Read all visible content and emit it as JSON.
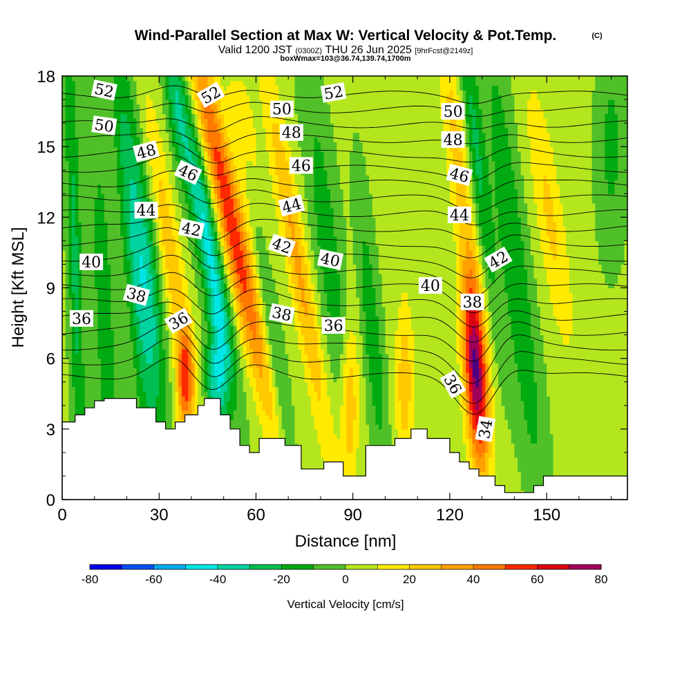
{
  "chart_data": {
    "type": "heatmap",
    "title": "Wind-Parallel Section at Max W: Vertical Velocity & Pot.Temp.",
    "title_mark": "(C)",
    "subtitle_parts": [
      "Valid 1200 JST",
      "(0300Z)",
      "THU 26 Jun 2025",
      "[9hrFcst@2149z]"
    ],
    "subtitle2": "boxWmax=103@36.74,139.74,1700m",
    "xlabel": "Distance [nm]",
    "ylabel": "Height [Kft MSL]",
    "xlim": [
      0,
      175
    ],
    "ylim": [
      0,
      18
    ],
    "x_ticks": [
      "0",
      "30",
      "60",
      "90",
      "120",
      "150"
    ],
    "x_tick_values": [
      0,
      30,
      60,
      90,
      120,
      150
    ],
    "y_ticks": [
      "0",
      "3",
      "6",
      "9",
      "12",
      "15",
      "18"
    ],
    "y_tick_values": [
      0,
      3,
      6,
      9,
      12,
      15,
      18
    ],
    "colorbar": {
      "label": "Vertical Velocity [cm/s]",
      "min": -80,
      "max": 80,
      "step": 10,
      "tick_labels": [
        "-80",
        "-60",
        "-40",
        "-20",
        "0",
        "20",
        "40",
        "60",
        "80"
      ],
      "colors": [
        "#0000e6",
        "#0a50f0",
        "#00aaf0",
        "#00e6e6",
        "#00d2a0",
        "#00be50",
        "#00aa10",
        "#50c028",
        "#b4e61e",
        "#ffea00",
        "#ffc800",
        "#ffa000",
        "#ff7800",
        "#ff2800",
        "#dc0014",
        "#a0005a",
        "#500082"
      ]
    },
    "terrain_kft": [
      [
        0,
        3.3
      ],
      [
        4,
        3.3
      ],
      [
        4,
        3.6
      ],
      [
        7,
        3.6
      ],
      [
        7,
        3.9
      ],
      [
        10,
        3.9
      ],
      [
        10,
        4.2
      ],
      [
        13,
        4.2
      ],
      [
        13,
        4.3
      ],
      [
        23,
        4.3
      ],
      [
        23,
        3.9
      ],
      [
        29,
        3.9
      ],
      [
        29,
        3.3
      ],
      [
        32,
        3.3
      ],
      [
        32,
        3.0
      ],
      [
        35,
        3.0
      ],
      [
        35,
        3.3
      ],
      [
        38,
        3.3
      ],
      [
        38,
        3.6
      ],
      [
        42,
        3.6
      ],
      [
        42,
        4.0
      ],
      [
        44,
        4.0
      ],
      [
        44,
        4.3
      ],
      [
        49,
        4.3
      ],
      [
        49,
        3.6
      ],
      [
        52,
        3.6
      ],
      [
        52,
        3.0
      ],
      [
        55,
        3.0
      ],
      [
        55,
        2.3
      ],
      [
        58,
        2.3
      ],
      [
        58,
        2.0
      ],
      [
        61,
        2.0
      ],
      [
        61,
        2.6
      ],
      [
        69,
        2.6
      ],
      [
        69,
        2.3
      ],
      [
        74,
        2.3
      ],
      [
        74,
        1.3
      ],
      [
        81,
        1.3
      ],
      [
        81,
        1.6
      ],
      [
        87,
        1.6
      ],
      [
        87,
        1.0
      ],
      [
        94,
        1.0
      ],
      [
        94,
        2.3
      ],
      [
        103,
        2.3
      ],
      [
        103,
        2.6
      ],
      [
        108,
        2.6
      ],
      [
        108,
        3.0
      ],
      [
        113,
        3.0
      ],
      [
        113,
        2.6
      ],
      [
        120,
        2.6
      ],
      [
        120,
        2.0
      ],
      [
        123,
        2.0
      ],
      [
        123,
        1.6
      ],
      [
        126,
        1.6
      ],
      [
        126,
        1.3
      ],
      [
        129,
        1.3
      ],
      [
        129,
        1.0
      ],
      [
        134,
        1.0
      ],
      [
        134,
        0.6
      ],
      [
        137,
        0.6
      ],
      [
        137,
        0.3
      ],
      [
        146,
        0.3
      ],
      [
        146,
        0.6
      ],
      [
        149,
        0.6
      ],
      [
        149,
        1.0
      ],
      [
        175,
        1.0
      ]
    ],
    "w_features": [
      {
        "x": 4,
        "z": 10,
        "sx": 1.5,
        "sz": 8,
        "tilt": -0.2,
        "w": -25
      },
      {
        "x": 13,
        "z": 8,
        "sx": 2.5,
        "sz": 6,
        "tilt": -0.3,
        "w": -18
      },
      {
        "x": 22,
        "z": 11,
        "sx": 2.5,
        "sz": 7,
        "tilt": -0.6,
        "w": -28
      },
      {
        "x": 27,
        "z": 9,
        "sx": 2.5,
        "sz": 4,
        "tilt": -0.6,
        "w": -30
      },
      {
        "x": 34,
        "z": 10,
        "sx": 2.5,
        "sz": 5,
        "tilt": -1.1,
        "w": 25
      },
      {
        "x": 38,
        "z": 5,
        "sx": 1.8,
        "sz": 1.5,
        "tilt": 0,
        "w": 45
      },
      {
        "x": 35,
        "z": 17,
        "sx": 2.0,
        "sz": 2.5,
        "tilt": -0.8,
        "w": -25
      },
      {
        "x": 45,
        "z": 11,
        "sx": 2.5,
        "sz": 4,
        "tilt": -1.2,
        "w": -45
      },
      {
        "x": 48,
        "z": 5,
        "sx": 2.5,
        "sz": 2,
        "tilt": 0,
        "w": -40
      },
      {
        "x": 52,
        "z": 12,
        "sx": 3.0,
        "sz": 6,
        "tilt": -1.5,
        "w": 55
      },
      {
        "x": 57,
        "z": 15,
        "sx": 2.5,
        "sz": 4,
        "tilt": -1.0,
        "w": 30
      },
      {
        "x": 61,
        "z": 11,
        "sx": 2.0,
        "sz": 7,
        "tilt": -1.0,
        "w": -25
      },
      {
        "x": 73,
        "z": 10,
        "sx": 2.5,
        "sz": 6,
        "tilt": -1.2,
        "w": 30
      },
      {
        "x": 82,
        "z": 11,
        "sx": 3.0,
        "sz": 5,
        "tilt": -0.8,
        "w": -18
      },
      {
        "x": 96,
        "z": 7,
        "sx": 2.0,
        "sz": 4,
        "tilt": -0.6,
        "w": -20
      },
      {
        "x": 89,
        "z": 4,
        "sx": 2.0,
        "sz": 2.5,
        "tilt": 0,
        "w": 30
      },
      {
        "x": 106,
        "z": 5,
        "sx": 2.0,
        "sz": 2.5,
        "tilt": 0,
        "w": 25
      },
      {
        "x": 122,
        "z": 15,
        "sx": 2.5,
        "sz": 4,
        "tilt": -0.8,
        "w": 22
      },
      {
        "x": 128,
        "z": 15,
        "sx": 2.0,
        "sz": 5,
        "tilt": -0.8,
        "w": -25
      },
      {
        "x": 128,
        "z": 5.5,
        "sx": 2.5,
        "sz": 3,
        "tilt": -0.4,
        "w": 80
      },
      {
        "x": 140,
        "z": 10,
        "sx": 3.0,
        "sz": 7,
        "tilt": -0.8,
        "w": -22
      },
      {
        "x": 151,
        "z": 12,
        "sx": 3.0,
        "sz": 4,
        "tilt": -1.0,
        "w": 20
      },
      {
        "x": 170,
        "z": 15,
        "sx": 3.0,
        "sz": 3,
        "tilt": 0,
        "w": -15
      }
    ],
    "theta_contours": {
      "levels_from": 34,
      "levels_to": 53,
      "base_level": 36,
      "base_height_kft": 6.5,
      "kft_per_degree": 0.63,
      "wave_terms": [
        {
          "x": 35,
          "sx": 7,
          "amp": 1.0,
          "decay": 12
        },
        {
          "x": 46,
          "sx": 6,
          "amp": -1.2,
          "decay": 10
        },
        {
          "x": 58,
          "sx": 8,
          "amp": 0.6,
          "decay": 10
        },
        {
          "x": 128,
          "sx": 6,
          "amp": -1.8,
          "decay": 6
        },
        {
          "x": 138,
          "sx": 6,
          "amp": 0.6,
          "decay": 8
        }
      ]
    },
    "contour_labels": [
      {
        "text": "52",
        "x": 13,
        "z": 17.4,
        "angle": 12
      },
      {
        "text": "50",
        "x": 13,
        "z": 15.9,
        "angle": 8
      },
      {
        "text": "48",
        "x": 26,
        "z": 14.8,
        "angle": -15
      },
      {
        "text": "46",
        "x": 39,
        "z": 13.9,
        "angle": 25
      },
      {
        "text": "44",
        "x": 26,
        "z": 12.3,
        "angle": 0
      },
      {
        "text": "42",
        "x": 40,
        "z": 11.5,
        "angle": 12
      },
      {
        "text": "40",
        "x": 9,
        "z": 10.1,
        "angle": 0
      },
      {
        "text": "38",
        "x": 23,
        "z": 8.7,
        "angle": 15
      },
      {
        "text": "36",
        "x": 6,
        "z": 7.7,
        "angle": 0
      },
      {
        "text": "36",
        "x": 36,
        "z": 7.6,
        "angle": -30
      },
      {
        "text": "52",
        "x": 46,
        "z": 17.2,
        "angle": -30
      },
      {
        "text": "50",
        "x": 68,
        "z": 16.6,
        "angle": 0
      },
      {
        "text": "48",
        "x": 71,
        "z": 15.6,
        "angle": 0
      },
      {
        "text": "46",
        "x": 74,
        "z": 14.2,
        "angle": 0
      },
      {
        "text": "44",
        "x": 71,
        "z": 12.5,
        "angle": -15
      },
      {
        "text": "42",
        "x": 68,
        "z": 10.8,
        "angle": 20
      },
      {
        "text": "40",
        "x": 83,
        "z": 10.2,
        "angle": 12
      },
      {
        "text": "38",
        "x": 68,
        "z": 7.9,
        "angle": 12
      },
      {
        "text": "36",
        "x": 84,
        "z": 7.4,
        "angle": 0
      },
      {
        "text": "52",
        "x": 84,
        "z": 17.3,
        "angle": -10
      },
      {
        "text": "50",
        "x": 121,
        "z": 16.5,
        "angle": 0
      },
      {
        "text": "48",
        "x": 121,
        "z": 15.3,
        "angle": 0
      },
      {
        "text": "46",
        "x": 123,
        "z": 13.8,
        "angle": 15
      },
      {
        "text": "44",
        "x": 123,
        "z": 12.1,
        "angle": 0
      },
      {
        "text": "42",
        "x": 135,
        "z": 10.2,
        "angle": -30
      },
      {
        "text": "40",
        "x": 114,
        "z": 9.1,
        "angle": 0
      },
      {
        "text": "38",
        "x": 127,
        "z": 8.4,
        "angle": 0
      },
      {
        "text": "36",
        "x": 121,
        "z": 4.9,
        "angle": 60
      },
      {
        "text": "34",
        "x": 131,
        "z": 3.0,
        "angle": -80
      }
    ]
  }
}
